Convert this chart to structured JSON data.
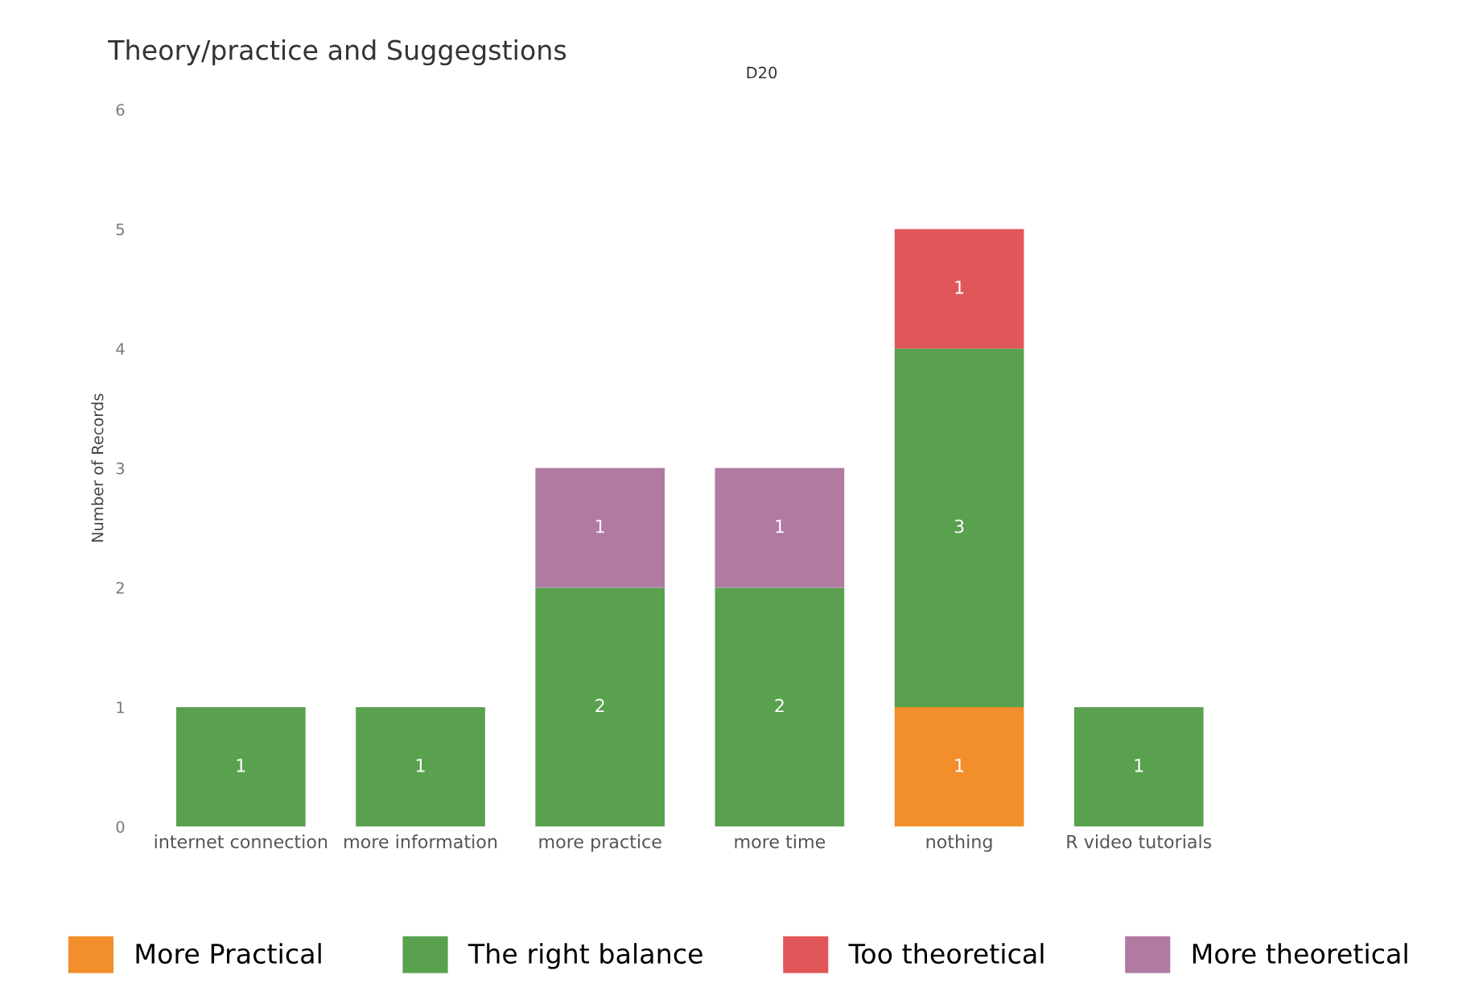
{
  "chart_data": {
    "type": "bar",
    "title": "Theory/practice and Suggegstions",
    "subtitle": "D20",
    "ylabel": "Number of Records",
    "categories": [
      "internet connection",
      "more information",
      "more practice",
      "more time",
      "nothing",
      "R video tutorials"
    ],
    "stacked": true,
    "series": [
      {
        "name": "More Practical",
        "color": "#f28e2b",
        "values": [
          null,
          null,
          null,
          null,
          1,
          null
        ]
      },
      {
        "name": "The right balance",
        "color": "#59a14f",
        "values": [
          1,
          1,
          2,
          2,
          3,
          1
        ]
      },
      {
        "name": "Too theoretical",
        "color": "#e15759",
        "values": [
          null,
          null,
          null,
          null,
          1,
          null
        ]
      },
      {
        "name": "More theoretical",
        "color": "#b07aa1",
        "values": [
          null,
          null,
          1,
          1,
          null,
          null
        ]
      }
    ],
    "ylim": [
      0,
      6
    ],
    "yticks": [
      0,
      1,
      2,
      3,
      4,
      5,
      6
    ],
    "grid": false,
    "data_labels": true,
    "legend": "bottom"
  }
}
